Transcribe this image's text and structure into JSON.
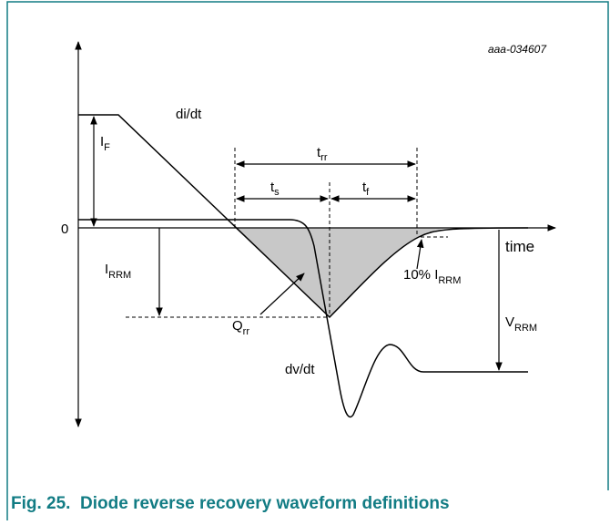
{
  "figure_id": "aaa-034607",
  "labels": {
    "if": {
      "main": "I",
      "sub": "F"
    },
    "didt": "di/dt",
    "trr": {
      "main": "t",
      "sub": "rr"
    },
    "ts": {
      "main": "t",
      "sub": "s"
    },
    "tf": {
      "main": "t",
      "sub": "f"
    },
    "zero": "0",
    "time": "time",
    "irrm": {
      "main": "I",
      "sub": "RRM"
    },
    "ten_percent": {
      "main": "10% I",
      "sub": "RRM"
    },
    "vrrm": {
      "main": "V",
      "sub": "RRM"
    },
    "qrr": {
      "main": "Q",
      "sub": "rr"
    },
    "dvdt": "dv/dt"
  },
  "caption": "Fig. 25.  Diode reverse recovery waveform definitions"
}
